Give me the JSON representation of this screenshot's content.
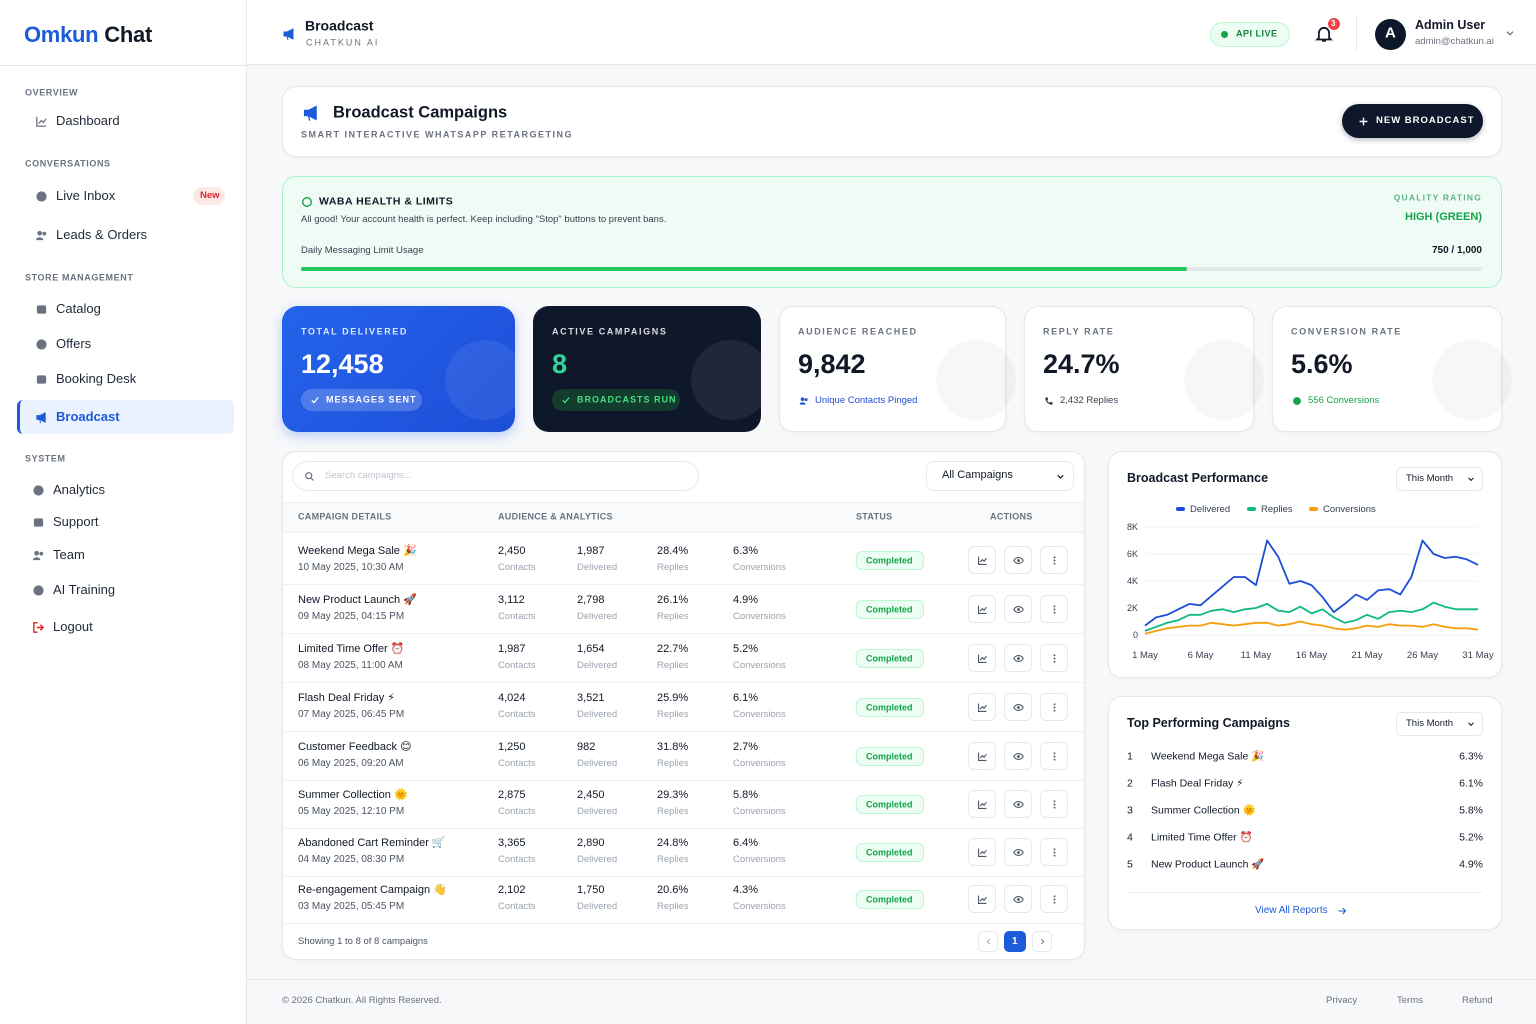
{
  "brand": {
    "part1": "Omkun",
    "part2": "Chat"
  },
  "sidebar": [
    {
      "title": "OVERVIEW",
      "items": [
        {
          "label": "Dashboard"
        }
      ]
    },
    {
      "title": "CONVERSATIONS",
      "items": [
        {
          "label": "Live Inbox",
          "badge": "New"
        },
        {
          "label": "Leads & Orders"
        }
      ]
    },
    {
      "title": "STORE MANAGEMENT",
      "items": [
        {
          "label": "Catalog"
        },
        {
          "label": "Offers"
        },
        {
          "label": "Booking Desk"
        },
        {
          "label": "Broadcast",
          "active": true
        }
      ]
    },
    {
      "title": "SYSTEM",
      "items": [
        {
          "label": "Analytics"
        },
        {
          "label": "Support"
        },
        {
          "label": "Team"
        },
        {
          "label": "AI Training"
        },
        {
          "label": "Logout"
        }
      ]
    }
  ],
  "header": {
    "title": "Broadcast",
    "subtitle": "CHATKUN AI",
    "status": "API LIVE",
    "notifications": "3",
    "user": {
      "initial": "A",
      "name": "Admin User",
      "email": "admin@chatkun.ai"
    }
  },
  "page": {
    "title": "Broadcast Campaigns",
    "subtitle": "SMART INTERACTIVE WHATSAPP RETARGETING",
    "button": "NEW BROADCAST"
  },
  "health": {
    "title": "WABA HEALTH & LIMITS",
    "message": "All good! Your account health is perfect. Keep including \"Stop\" buttons to prevent bans.",
    "quality_label": "QUALITY RATING",
    "quality": "HIGH (GREEN)",
    "usage_label": "Daily Messaging Limit Usage",
    "usage": {
      "used": 750,
      "limit": 1000,
      "label": "750 / 1,000"
    }
  },
  "stats": [
    {
      "label": "TOTAL DELIVERED",
      "value": "12,458",
      "note": "MESSAGES SENT"
    },
    {
      "label": "ACTIVE CAMPAIGNS",
      "value": "8",
      "note": "BROADCASTS RUN"
    },
    {
      "label": "AUDIENCE REACHED",
      "value": "9,842",
      "note": "Unique Contacts Pinged"
    },
    {
      "label": "REPLY RATE",
      "value": "24.7%",
      "note": "2,432 Replies"
    },
    {
      "label": "CONVERSION RATE",
      "value": "5.6%",
      "note": "556 Conversions"
    }
  ],
  "table": {
    "search_placeholder": "Search campaigns...",
    "filter": "All Campaigns",
    "columns": [
      "CAMPAIGN DETAILS",
      "AUDIENCE & ANALYTICS",
      "STATUS",
      "ACTIONS"
    ],
    "metric_labels": [
      "Contacts",
      "Delivered",
      "Replies",
      "Conversions"
    ],
    "rows": [
      {
        "name": "Weekend Mega Sale 🎉",
        "date": "10 May 2025, 10:30 AM",
        "metrics": [
          "2,450",
          "1,987",
          "28.4%",
          "6.3%"
        ],
        "status": "Completed"
      },
      {
        "name": "New Product Launch 🚀",
        "date": "09 May 2025, 04:15 PM",
        "metrics": [
          "3,112",
          "2,798",
          "26.1%",
          "4.9%"
        ],
        "status": "Completed"
      },
      {
        "name": "Limited Time Offer ⏰",
        "date": "08 May 2025, 11:00 AM",
        "metrics": [
          "1,987",
          "1,654",
          "22.7%",
          "5.2%"
        ],
        "status": "Completed"
      },
      {
        "name": "Flash Deal Friday ⚡",
        "date": "07 May 2025, 06:45 PM",
        "metrics": [
          "4,024",
          "3,521",
          "25.9%",
          "6.1%"
        ],
        "status": "Completed"
      },
      {
        "name": "Customer Feedback 😊",
        "date": "06 May 2025, 09:20 AM",
        "metrics": [
          "1,250",
          "982",
          "31.8%",
          "2.7%"
        ],
        "status": "Completed"
      },
      {
        "name": "Summer Collection 🌞",
        "date": "05 May 2025, 12:10 PM",
        "metrics": [
          "2,875",
          "2,450",
          "29.3%",
          "5.8%"
        ],
        "status": "Completed"
      },
      {
        "name": "Abandoned Cart Reminder 🛒",
        "date": "04 May 2025, 08:30 PM",
        "metrics": [
          "3,365",
          "2,890",
          "24.8%",
          "6.4%"
        ],
        "status": "Completed"
      },
      {
        "name": "Re-engagement Campaign 👋",
        "date": "03 May 2025, 05:45 PM",
        "metrics": [
          "2,102",
          "1,750",
          "20.6%",
          "4.3%"
        ],
        "status": "Completed"
      }
    ],
    "summary": "Showing 1 to 8 of 8 campaigns",
    "page": "1"
  },
  "chart_data": {
    "type": "line",
    "title": "Broadcast Performance",
    "period": "This Month",
    "categories": [
      "1 May",
      null,
      null,
      null,
      null,
      "6 May",
      null,
      null,
      null,
      null,
      "11 May",
      null,
      null,
      null,
      null,
      "16 May",
      null,
      null,
      null,
      null,
      "21 May",
      null,
      null,
      null,
      null,
      "26 May",
      null,
      null,
      null,
      null,
      "31 May"
    ],
    "series": [
      {
        "name": "Delivered",
        "color": "#1d4ed8",
        "values": [
          700,
          1300,
          1500,
          1900,
          2300,
          2200,
          2900,
          3600,
          4300,
          4300,
          3700,
          7000,
          5800,
          3800,
          4000,
          3700,
          2800,
          1700,
          2300,
          3000,
          2600,
          3300,
          3400,
          3000,
          4300,
          7000,
          6000,
          5700,
          5800,
          5600,
          5200
        ]
      },
      {
        "name": "Replies",
        "color": "#10b981",
        "values": [
          300,
          600,
          900,
          1100,
          1500,
          1500,
          1800,
          1900,
          1700,
          1900,
          2000,
          2300,
          1800,
          1700,
          2100,
          1600,
          1900,
          1300,
          900,
          1100,
          1500,
          1200,
          1700,
          1800,
          1700,
          1900,
          2400,
          2100,
          1900,
          1900,
          1900
        ]
      },
      {
        "name": "Conversions",
        "color": "#f59e0b",
        "values": [
          100,
          300,
          500,
          600,
          700,
          700,
          900,
          800,
          700,
          800,
          900,
          900,
          700,
          800,
          1000,
          800,
          700,
          500,
          400,
          500,
          700,
          600,
          800,
          700,
          700,
          600,
          800,
          600,
          500,
          500,
          400
        ]
      }
    ],
    "ylim": [
      0,
      8000
    ],
    "yticks": [
      0,
      {
        "value": 2000,
        "label": "2K"
      },
      {
        "value": 4000,
        "label": "4K"
      },
      {
        "value": 6000,
        "label": "6K"
      },
      {
        "value": 8000,
        "label": "8K"
      }
    ]
  },
  "top": {
    "title": "Top Performing Campaigns",
    "period": "This Month",
    "items": [
      {
        "rank": "1",
        "name": "Weekend Mega Sale 🎉",
        "value": "6.3%"
      },
      {
        "rank": "2",
        "name": "Flash Deal Friday ⚡",
        "value": "6.1%"
      },
      {
        "rank": "3",
        "name": "Summer Collection 🌞",
        "value": "5.8%"
      },
      {
        "rank": "4",
        "name": "Limited Time Offer ⏰",
        "value": "5.2%"
      },
      {
        "rank": "5",
        "name": "New Product Launch 🚀",
        "value": "4.9%"
      }
    ],
    "link": "View All Reports"
  },
  "footer": {
    "copyright": "© 2026 Chatkun. All Rights Reserved.",
    "links": [
      "Privacy",
      "Terms",
      "Refund"
    ]
  }
}
